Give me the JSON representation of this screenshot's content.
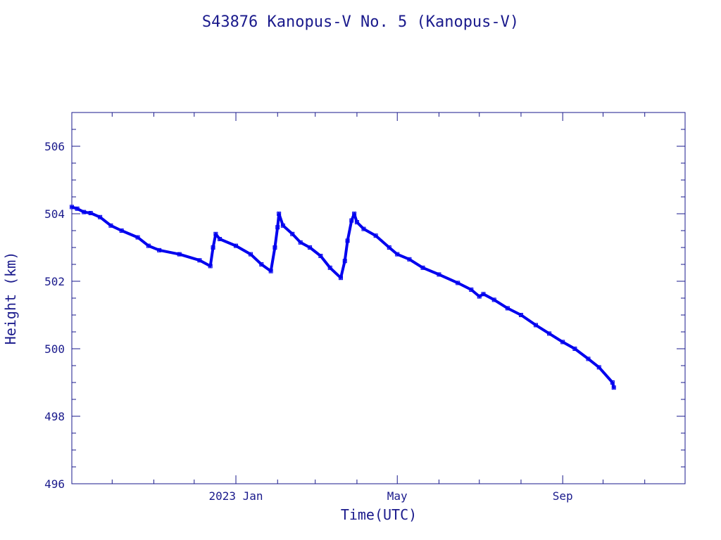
{
  "chart_data": {
    "type": "line",
    "title": "S43876 Kanopus-V No. 5  (Kanopus-V)",
    "xlabel": "Time(UTC)",
    "ylabel": "Height (km)",
    "ylim": [
      496,
      507
    ],
    "xlim": [
      "2022-09-01",
      "2023-12-01"
    ],
    "y_ticks": [
      496,
      498,
      500,
      502,
      504,
      506
    ],
    "x_tick_labels": [
      {
        "date": "2023-01-01",
        "label": "2023 Jan"
      },
      {
        "date": "2023-05-01",
        "label": "May"
      },
      {
        "date": "2023-09-01",
        "label": "Sep"
      }
    ],
    "x_minor_ticks": [
      "2022-10-01",
      "2022-11-01",
      "2022-12-01",
      "2023-02-01",
      "2023-03-01",
      "2023-04-01",
      "2023-06-01",
      "2023-07-01",
      "2023-08-01",
      "2023-10-01",
      "2023-11-01"
    ],
    "grid": false,
    "color": "#0000ee",
    "axis_color": "#1a1a8c",
    "series": [
      {
        "points": [
          [
            "2022-09-01",
            504.2
          ],
          [
            "2022-09-05",
            504.15
          ],
          [
            "2022-09-10",
            504.05
          ],
          [
            "2022-09-15",
            504.02
          ],
          [
            "2022-09-22",
            503.9
          ],
          [
            "2022-09-30",
            503.65
          ],
          [
            "2022-10-08",
            503.5
          ],
          [
            "2022-10-20",
            503.3
          ],
          [
            "2022-10-28",
            503.05
          ],
          [
            "2022-11-05",
            502.92
          ],
          [
            "2022-11-20",
            502.8
          ],
          [
            "2022-12-05",
            502.62
          ],
          [
            "2022-12-13",
            502.45
          ],
          [
            "2022-12-15",
            503.0
          ],
          [
            "2022-12-17",
            503.4
          ],
          [
            "2022-12-20",
            503.25
          ],
          [
            "2023-01-01",
            503.05
          ],
          [
            "2023-01-12",
            502.8
          ],
          [
            "2023-01-20",
            502.5
          ],
          [
            "2023-01-27",
            502.3
          ],
          [
            "2023-01-30",
            503.0
          ],
          [
            "2023-02-01",
            503.6
          ],
          [
            "2023-02-02",
            504.0
          ],
          [
            "2023-02-05",
            503.65
          ],
          [
            "2023-02-12",
            503.4
          ],
          [
            "2023-02-18",
            503.15
          ],
          [
            "2023-02-25",
            503.0
          ],
          [
            "2023-03-05",
            502.75
          ],
          [
            "2023-03-12",
            502.4
          ],
          [
            "2023-03-20",
            502.1
          ],
          [
            "2023-03-23",
            502.6
          ],
          [
            "2023-03-25",
            503.2
          ],
          [
            "2023-03-28",
            503.8
          ],
          [
            "2023-03-30",
            504.0
          ],
          [
            "2023-04-01",
            503.75
          ],
          [
            "2023-04-06",
            503.55
          ],
          [
            "2023-04-15",
            503.35
          ],
          [
            "2023-04-25",
            503.0
          ],
          [
            "2023-05-01",
            502.8
          ],
          [
            "2023-05-10",
            502.65
          ],
          [
            "2023-05-20",
            502.4
          ],
          [
            "2023-06-01",
            502.2
          ],
          [
            "2023-06-15",
            501.95
          ],
          [
            "2023-06-25",
            501.75
          ],
          [
            "2023-07-01",
            501.55
          ],
          [
            "2023-07-04",
            501.62
          ],
          [
            "2023-07-12",
            501.45
          ],
          [
            "2023-07-22",
            501.2
          ],
          [
            "2023-08-01",
            501.0
          ],
          [
            "2023-08-12",
            500.7
          ],
          [
            "2023-08-22",
            500.45
          ],
          [
            "2023-09-01",
            500.2
          ],
          [
            "2023-09-10",
            500.0
          ],
          [
            "2023-09-20",
            499.7
          ],
          [
            "2023-09-28",
            499.45
          ],
          [
            "2023-10-08",
            499.0
          ],
          [
            "2023-10-09",
            498.85
          ]
        ]
      }
    ]
  }
}
